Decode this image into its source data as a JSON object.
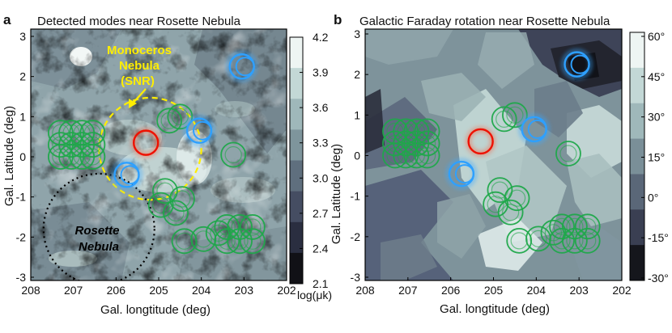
{
  "chart_data": [
    {
      "type": "heatmap",
      "panel": "a",
      "title": "Detected modes near Rosette Nebula",
      "xlabel": "Gal. longtitude (deg)",
      "ylabel": "Gal. Latitude (deg)",
      "xlim": [
        208,
        202
      ],
      "ylim": [
        -3,
        3.3
      ],
      "xticks": [
        "208",
        "207",
        "206",
        "205",
        "204",
        "203",
        "202"
      ],
      "yticks": [
        "3",
        "2",
        "1",
        "0",
        "-1",
        "-2",
        "-3"
      ],
      "colorbar": {
        "label": "log(μk)",
        "ticks": [
          "4.2",
          "3.9",
          "3.6",
          "3.3",
          "3.0",
          "2.7",
          "2.4",
          "2.1"
        ],
        "colors": [
          "#eef5f3",
          "#c3d8d6",
          "#9fb8ba",
          "#7e959c",
          "#5f6f7e",
          "#454d62",
          "#2a2e40",
          "#111116"
        ]
      },
      "annotations": {
        "snr_label": [
          "Monoceros",
          "Nebula",
          "(SNR)"
        ],
        "nebula_label": [
          "Rosette",
          "Nebula"
        ]
      },
      "markers": {
        "green": [
          [
            207.3,
            0.6
          ],
          [
            207.05,
            0.6
          ],
          [
            206.8,
            0.6
          ],
          [
            206.55,
            0.6
          ],
          [
            207.3,
            0.3
          ],
          [
            207.05,
            0.3
          ],
          [
            206.8,
            0.3
          ],
          [
            206.55,
            0.3
          ],
          [
            207.3,
            0.0
          ],
          [
            207.05,
            0.0
          ],
          [
            206.8,
            0.0
          ],
          [
            206.55,
            0.0
          ],
          [
            204.75,
            0.9
          ],
          [
            204.5,
            1.0
          ],
          [
            203.25,
            0.05
          ],
          [
            204.85,
            -0.85
          ],
          [
            204.95,
            -1.2
          ],
          [
            204.6,
            -1.4
          ],
          [
            204.45,
            -1.05
          ],
          [
            204.4,
            -2.1
          ],
          [
            203.95,
            -2.05
          ],
          [
            203.6,
            -1.9
          ],
          [
            203.4,
            -1.75
          ],
          [
            203.1,
            -1.75
          ],
          [
            202.8,
            -1.75
          ],
          [
            203.4,
            -2.1
          ],
          [
            203.1,
            -2.1
          ],
          [
            202.8,
            -2.1
          ]
        ],
        "blue": [
          [
            205.75,
            -0.45
          ],
          [
            204.05,
            0.65
          ],
          [
            203.05,
            2.25
          ]
        ],
        "red": [
          [
            205.3,
            0.35
          ]
        ]
      },
      "circles": [
        {
          "name": "monoceros-snr",
          "center": [
            205.2,
            0.2
          ],
          "radius_deg": 1.2,
          "color": "#ffee00"
        },
        {
          "name": "rosette-nebula",
          "center": [
            206.4,
            -1.8
          ],
          "radius_deg": 1.3,
          "color": "#000000"
        }
      ]
    },
    {
      "type": "heatmap",
      "panel": "b",
      "title": "Galactic Faraday rotation near Rosette Nebula",
      "xlabel": "Gal. longtitude (deg)",
      "ylabel": "Gal. Latitude (deg)",
      "xlim": [
        208,
        202
      ],
      "ylim": [
        -3,
        3.3
      ],
      "xticks": [
        "208",
        "207",
        "206",
        "205",
        "204",
        "203",
        "202"
      ],
      "yticks": [
        "3",
        "2",
        "1",
        "0",
        "-1",
        "-2",
        "-3"
      ],
      "colorbar": {
        "label": "",
        "ticks": [
          "60°",
          "45°",
          "30°",
          "15°",
          "0°",
          "-15°",
          "-30°"
        ],
        "colors": [
          "#eef5f3",
          "#c3d8d6",
          "#9fb8ba",
          "#7a8f98",
          "#5a6778",
          "#3a3f52",
          "#15161c"
        ]
      },
      "markers": {
        "green": [
          [
            207.3,
            0.6
          ],
          [
            207.05,
            0.6
          ],
          [
            206.8,
            0.6
          ],
          [
            206.55,
            0.6
          ],
          [
            207.3,
            0.3
          ],
          [
            207.05,
            0.3
          ],
          [
            206.8,
            0.3
          ],
          [
            206.55,
            0.3
          ],
          [
            207.3,
            0.0
          ],
          [
            207.05,
            0.0
          ],
          [
            206.8,
            0.0
          ],
          [
            206.55,
            0.0
          ],
          [
            204.75,
            0.9
          ],
          [
            204.5,
            1.0
          ],
          [
            203.25,
            0.05
          ],
          [
            204.85,
            -0.85
          ],
          [
            204.95,
            -1.2
          ],
          [
            204.6,
            -1.4
          ],
          [
            204.45,
            -1.05
          ],
          [
            204.4,
            -2.1
          ],
          [
            203.95,
            -2.05
          ],
          [
            203.6,
            -1.9
          ],
          [
            203.4,
            -1.75
          ],
          [
            203.1,
            -1.75
          ],
          [
            202.8,
            -1.75
          ],
          [
            203.4,
            -2.1
          ],
          [
            203.1,
            -2.1
          ],
          [
            202.8,
            -2.1
          ]
        ],
        "blue": [
          [
            205.75,
            -0.45
          ],
          [
            204.05,
            0.65
          ],
          [
            203.05,
            2.25
          ]
        ],
        "red": [
          [
            205.3,
            0.35
          ]
        ]
      }
    }
  ]
}
